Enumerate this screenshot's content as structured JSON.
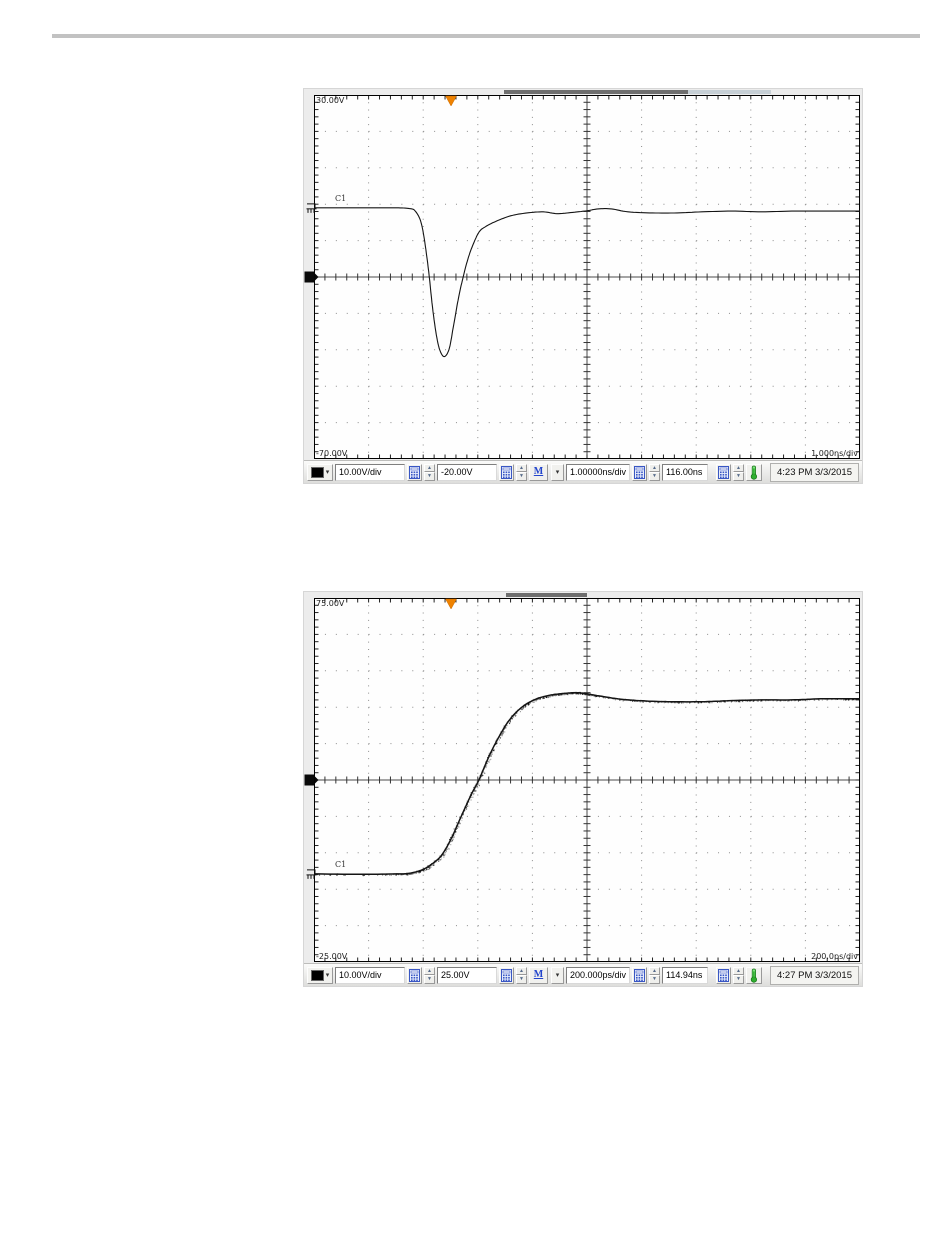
{
  "page": {
    "divider_color": "#c2c2c2"
  },
  "icons": {
    "dropdown_arrow": "▾",
    "spinner_up": "▲",
    "spinner_down": "▼"
  },
  "scopes": [
    {
      "top_label": "30.00V",
      "bottom_label": "-70.00V",
      "timebase_label": "1.000ns/div",
      "channel_label": "C1",
      "top_v": 30,
      "bottom_v": -70,
      "trigger_pos_div": 2.51,
      "trigger_level_v": -20,
      "noise": false,
      "record_bar": [
        {
          "from": 3.48,
          "to": 6.85,
          "color": "#6e6e6e"
        },
        {
          "from": 6.85,
          "to": 8.37,
          "color": "#c6cfd5"
        }
      ],
      "waveform": [
        [
          0,
          -1.0
        ],
        [
          1.2,
          -1.0
        ],
        [
          1.55,
          -1.0
        ],
        [
          1.75,
          -1.2
        ],
        [
          1.85,
          -1.8
        ],
        [
          1.95,
          -4.5
        ],
        [
          2.02,
          -9.5
        ],
        [
          2.1,
          -18.5
        ],
        [
          2.18,
          -29.5
        ],
        [
          2.26,
          -37.5
        ],
        [
          2.33,
          -41.0
        ],
        [
          2.4,
          -41.8
        ],
        [
          2.48,
          -39.5
        ],
        [
          2.56,
          -33.0
        ],
        [
          2.65,
          -25.5
        ],
        [
          2.74,
          -19.5
        ],
        [
          2.83,
          -14.5
        ],
        [
          2.93,
          -10.5
        ],
        [
          3.03,
          -7.5
        ],
        [
          3.16,
          -6.0
        ],
        [
          3.35,
          -4.6
        ],
        [
          3.6,
          -3.2
        ],
        [
          3.9,
          -2.4
        ],
        [
          4.2,
          -2.1
        ],
        [
          4.45,
          -2.6
        ],
        [
          4.7,
          -2.3
        ],
        [
          5.0,
          -1.8
        ],
        [
          5.2,
          -1.3
        ],
        [
          5.45,
          -1.3
        ],
        [
          5.75,
          -2.1
        ],
        [
          6.2,
          -2.4
        ],
        [
          6.65,
          -2.4
        ],
        [
          7.1,
          -2.1
        ],
        [
          7.65,
          -1.9
        ],
        [
          8.2,
          -2.1
        ],
        [
          8.75,
          -1.9
        ],
        [
          9.3,
          -1.9
        ],
        [
          10,
          -1.9
        ]
      ],
      "statusbar": {
        "channel_color": "#000000",
        "vertical_scale": "10.00V/div",
        "vertical_offset": "-20.00V",
        "math_button": "M",
        "horizontal_scale": "1.00000ns/div",
        "horizontal_position": "116.00ns",
        "datetime": "4:23 PM 3/3/2015"
      }
    },
    {
      "top_label": "75.00V",
      "bottom_label": "-25.00V",
      "timebase_label": "200.0ps/div",
      "channel_label": "C1",
      "top_v": 75,
      "bottom_v": -25,
      "trigger_pos_div": 2.51,
      "trigger_level_v": 25,
      "noise": true,
      "record_bar": [
        {
          "from": 3.52,
          "to": 5.0,
          "color": "#6e6e6e"
        }
      ],
      "waveform": [
        [
          0,
          -0.8
        ],
        [
          0.9,
          -0.9
        ],
        [
          1.5,
          -0.8
        ],
        [
          1.72,
          -0.7
        ],
        [
          1.96,
          0.2
        ],
        [
          2.14,
          1.7
        ],
        [
          2.33,
          4.2
        ],
        [
          2.51,
          8.8
        ],
        [
          2.69,
          14.8
        ],
        [
          2.88,
          21.0
        ],
        [
          3.02,
          25.0
        ],
        [
          3.19,
          31.0
        ],
        [
          3.37,
          36.4
        ],
        [
          3.57,
          41.3
        ],
        [
          3.79,
          44.8
        ],
        [
          4.03,
          47.0
        ],
        [
          4.29,
          48.2
        ],
        [
          4.52,
          48.7
        ],
        [
          4.8,
          49.0
        ],
        [
          4.98,
          48.7
        ],
        [
          5.26,
          48.0
        ],
        [
          5.62,
          47.2
        ],
        [
          6.08,
          46.7
        ],
        [
          6.54,
          46.5
        ],
        [
          7.09,
          46.5
        ],
        [
          7.64,
          46.8
        ],
        [
          8.19,
          47.0
        ],
        [
          8.74,
          47.0
        ],
        [
          9.28,
          47.3
        ],
        [
          9.74,
          47.3
        ],
        [
          10,
          47.3
        ]
      ],
      "statusbar": {
        "channel_color": "#000000",
        "vertical_scale": "10.00V/div",
        "vertical_offset": "25.00V",
        "math_button": "M",
        "horizontal_scale": "200.000ps/div",
        "horizontal_position": "114.94ns",
        "datetime": "4:27 PM 3/3/2015"
      }
    }
  ]
}
